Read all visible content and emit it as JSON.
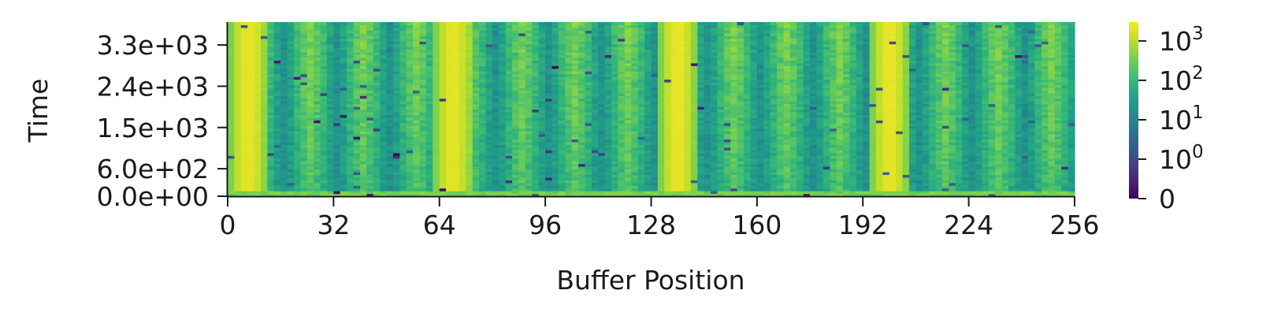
{
  "chart_data": {
    "type": "heatmap",
    "title": "",
    "xlabel": "Buffer Position",
    "ylabel": "Time",
    "x_range": [
      0,
      256
    ],
    "y_range": [
      0,
      3800
    ],
    "x_ticks": [
      0,
      32,
      64,
      96,
      128,
      160,
      192,
      224,
      256
    ],
    "x_tick_labels": [
      "0",
      "32",
      "64",
      "96",
      "128",
      "160",
      "192",
      "224",
      "256"
    ],
    "y_ticks": [
      0,
      600,
      1500,
      2400,
      3300
    ],
    "y_tick_labels": [
      "0.0e+00",
      "6.0e+02",
      "1.5e+03",
      "2.4e+03",
      "3.3e+03"
    ],
    "colormap": "viridis",
    "color_scale": "symlog",
    "color_range": [
      0,
      3000
    ],
    "colorbar_ticks": [
      0,
      1,
      10,
      100,
      1000
    ],
    "colorbar_labels": [
      {
        "base": "0",
        "exp": ""
      },
      {
        "base": "10",
        "exp": "0"
      },
      {
        "base": "10",
        "exp": "1"
      },
      {
        "base": "10",
        "exp": "2"
      },
      {
        "base": "10",
        "exp": "3"
      }
    ],
    "bright_columns": [
      6,
      68,
      136,
      200
    ],
    "grid": false,
    "legend": "none"
  }
}
